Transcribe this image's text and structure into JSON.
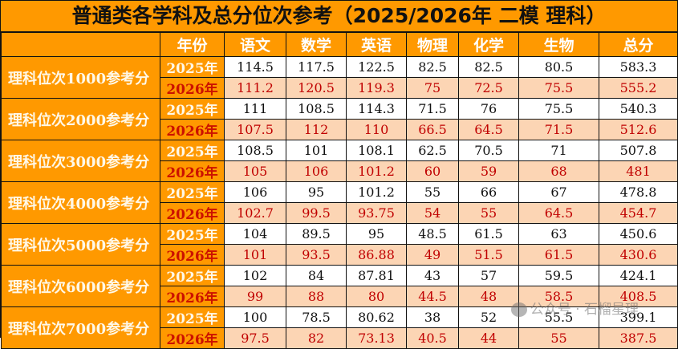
{
  "title": "普通类各学科及总分位次参考（2025/2026年 二模 理科）",
  "header": {
    "blank": "",
    "columns": [
      "年份",
      "语文",
      "数学",
      "英语",
      "物理",
      "化学",
      "生物",
      "总分"
    ]
  },
  "colors": {
    "header_bg": "#ff9900",
    "row_2025_bg": "#ffffff",
    "row_2026_bg": "#fcd5b4",
    "row_2026_text": "#c00000"
  },
  "groups": [
    {
      "label": "理科位次1000参考分",
      "rows": [
        {
          "year": "2025年",
          "values": [
            "114.5",
            "117.5",
            "122.5",
            "82.5",
            "82.5",
            "80.5",
            "583.3"
          ]
        },
        {
          "year": "2026年",
          "values": [
            "111.2",
            "120.5",
            "119.3",
            "75",
            "72.5",
            "75.5",
            "555.2"
          ]
        }
      ]
    },
    {
      "label": "理科位次2000参考分",
      "rows": [
        {
          "year": "2025年",
          "values": [
            "111",
            "108.5",
            "114.3",
            "71.5",
            "76",
            "75.5",
            "540.3"
          ]
        },
        {
          "year": "2026年",
          "values": [
            "107.5",
            "112",
            "110",
            "66.5",
            "64.5",
            "71.5",
            "512.6"
          ]
        }
      ]
    },
    {
      "label": "理科位次3000参考分",
      "rows": [
        {
          "year": "2025年",
          "values": [
            "108.5",
            "101",
            "108.1",
            "62.5",
            "70.5",
            "71",
            "507.8"
          ]
        },
        {
          "year": "2026年",
          "values": [
            "105",
            "106",
            "101.2",
            "60",
            "59",
            "68",
            "481"
          ]
        }
      ]
    },
    {
      "label": "理科位次4000参考分",
      "rows": [
        {
          "year": "2025年",
          "values": [
            "106",
            "95",
            "101.2",
            "55",
            "66",
            "67",
            "478.8"
          ]
        },
        {
          "year": "2026年",
          "values": [
            "102.7",
            "99.5",
            "93.75",
            "54",
            "55",
            "64.5",
            "454.7"
          ]
        }
      ]
    },
    {
      "label": "理科位次5000参考分",
      "rows": [
        {
          "year": "2025年",
          "values": [
            "104",
            "89.5",
            "95",
            "48.5",
            "61.5",
            "63",
            "450.6"
          ]
        },
        {
          "year": "2026年",
          "values": [
            "101",
            "93.5",
            "86.88",
            "49",
            "51.5",
            "61.5",
            "430.6"
          ]
        }
      ]
    },
    {
      "label": "理科位次6000参考分",
      "rows": [
        {
          "year": "2025年",
          "values": [
            "102",
            "84",
            "87.81",
            "43",
            "57",
            "59.5",
            "424.1"
          ]
        },
        {
          "year": "2026年",
          "values": [
            "99",
            "88",
            "80",
            "44.5",
            "48",
            "58.5",
            "408.5"
          ]
        }
      ]
    },
    {
      "label": "理科位次7000参考分",
      "rows": [
        {
          "year": "2025年",
          "values": [
            "100",
            "78.5",
            "80.62",
            "38",
            "52",
            "55.5",
            "399.1"
          ]
        },
        {
          "year": "2026年",
          "values": [
            "97.5",
            "82",
            "73.13",
            "40.5",
            "44",
            "55",
            "387.5"
          ]
        }
      ]
    }
  ],
  "watermark": {
    "icon": "wechat-official-account-icon",
    "text": "公众号 · 石榴星理"
  }
}
